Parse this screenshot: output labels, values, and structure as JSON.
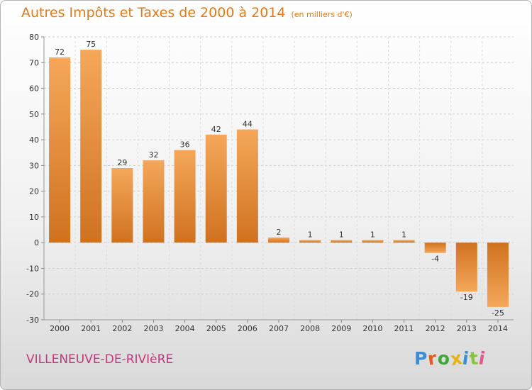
{
  "header": {
    "title": "Autres Impôts et Taxes de 2000 à 2014",
    "unit": "(en milliers d'€)"
  },
  "footer": {
    "city": "VILLENEUVE-DE-RIVIèRE",
    "brand": "Proxiti"
  },
  "colors": {
    "title": "#e07a1c",
    "city": "#c0397a",
    "bar_light": "#f5a75a",
    "bar_dark": "#cf7220",
    "logo_letters": [
      "#3a8dd0",
      "#e85c1c",
      "#3fa73a",
      "#e6b21a",
      "#3a8dd0",
      "#8ac43f",
      "#e05a8c"
    ]
  },
  "chart_data": {
    "type": "bar",
    "categories": [
      "2000",
      "2001",
      "2002",
      "2003",
      "2004",
      "2005",
      "2006",
      "2007",
      "2008",
      "2009",
      "2010",
      "2011",
      "2012",
      "2013",
      "2014"
    ],
    "values": [
      72,
      75,
      29,
      32,
      36,
      42,
      44,
      2,
      1,
      1,
      1,
      1,
      -4,
      -19,
      -25
    ],
    "labels": [
      "72",
      "75",
      "29",
      "32",
      "36",
      "42",
      "44",
      "2",
      "1",
      "1",
      "1",
      "1",
      "-4",
      "-19",
      "-25"
    ],
    "ylim": [
      -30,
      80
    ],
    "yticks": [
      -30,
      -20,
      -10,
      0,
      10,
      20,
      30,
      40,
      50,
      60,
      70,
      80
    ],
    "grid": "horizontal-dashed",
    "xlabel": "",
    "ylabel": ""
  }
}
